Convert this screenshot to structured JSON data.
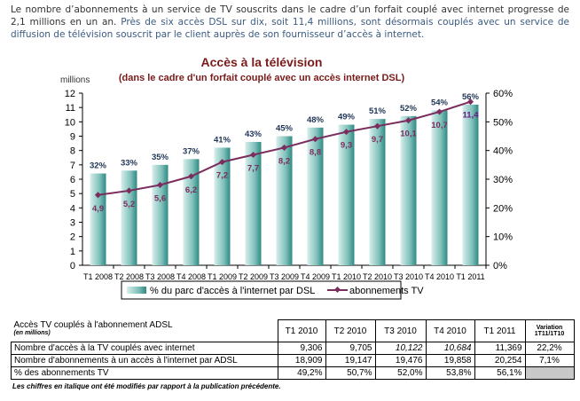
{
  "intro": {
    "part1": "Le nombre d’abonnements à un service de TV souscrits dans le cadre d’un forfait couplé avec internet progresse de 2,1 millions en un an.",
    "part2": " Près de six accès DSL sur dix, soit 11,4 millions, sont désormais couplés avec un service de diffusion de télévision souscrit par le client auprès de son fournisseur d’accès à internet."
  },
  "chart_data": {
    "type": "bar",
    "title": "Accès à la télévision",
    "subtitle": "(dans le cadre d'un forfait couplé avec un accès internet DSL)",
    "ylabel": "millions",
    "ylim": [
      0,
      12
    ],
    "y2lim": [
      0,
      60
    ],
    "yticks": [
      "0",
      "1",
      "2",
      "3",
      "4",
      "5",
      "6",
      "7",
      "8",
      "9",
      "10",
      "11",
      "12"
    ],
    "y2ticks": [
      "0%",
      "10%",
      "20%",
      "30%",
      "40%",
      "50%",
      "60%"
    ],
    "categories": [
      "T1 2008",
      "T2 2008",
      "T3 2008",
      "T4 2008",
      "T1 2009",
      "T2 2009",
      "T3 2009",
      "T4 2009",
      "T1 2010",
      "T2 2010",
      "T3 2010",
      "T4 2010",
      "T1 2011"
    ],
    "series": [
      {
        "name": "% du parc d'accès à l'internet par DSL",
        "type": "bar",
        "axis": "right",
        "values": [
          32,
          33,
          35,
          37,
          41,
          43,
          45,
          48,
          49,
          51,
          52,
          54,
          56
        ],
        "labels": [
          "32%",
          "33%",
          "35%",
          "37%",
          "41%",
          "43%",
          "45%",
          "48%",
          "49%",
          "51%",
          "52%",
          "54%",
          "56%"
        ],
        "color": "#3d9e96"
      },
      {
        "name": "abonnements TV",
        "type": "line",
        "axis": "left",
        "values": [
          4.9,
          5.2,
          5.6,
          6.2,
          7.2,
          7.7,
          8.2,
          8.8,
          9.3,
          9.7,
          10.1,
          10.7,
          11.4
        ],
        "labels": [
          "4,9",
          "5,2",
          "5,6",
          "6,2",
          "7,2",
          "7,7",
          "8,2",
          "8,8",
          "9,3",
          "9,7",
          "10,1",
          "10,7",
          "11,4"
        ],
        "color": "#7b2d5e"
      }
    ],
    "legend": "bottom"
  },
  "table": {
    "title": "Accès TV couplés à l'abonnement ADSL",
    "unit": "(en millions)",
    "headers": [
      "T1 2010",
      "T2 2010",
      "T3 2010",
      "T4 2010",
      "T1 2011"
    ],
    "variation": [
      "Variation",
      "1T11/1T10"
    ],
    "rows": [
      {
        "label": "Nombre d'accès à la TV couplés avec internet",
        "values": [
          "9,306",
          "9,705",
          "10,122",
          "10,684",
          "11,369"
        ],
        "var": "22,2%"
      },
      {
        "label": "Nombre d'abonnements à un accès à l'internet par ADSL",
        "values": [
          "18,909",
          "19,147",
          "19,476",
          "19,858",
          "20,254"
        ],
        "var": "7,1%"
      },
      {
        "label": "% des abonnements TV",
        "values": [
          "49,2%",
          "50,7%",
          "52,0%",
          "53,8%",
          "56,1%"
        ],
        "var": ""
      }
    ],
    "footnote": "Les chiffres en italique ont été modifiés par rapport à la publication précédente."
  }
}
